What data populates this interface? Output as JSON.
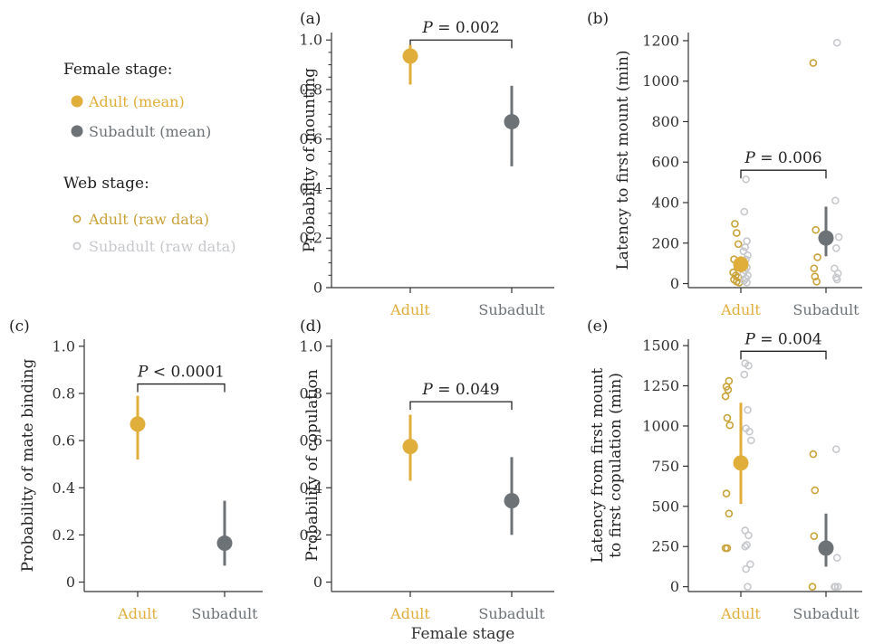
{
  "legend": {
    "female_title": "Female stage:",
    "female_items": [
      {
        "label": "Adult (mean)",
        "color": "#e0ae3b",
        "marker": "filled-circle"
      },
      {
        "label": "Subadult (mean)",
        "color": "#6c7276",
        "marker": "filled-circle"
      }
    ],
    "web_title": "Web stage:",
    "web_items": [
      {
        "label": "Adult (raw data)",
        "color": "#c9a23a",
        "marker": "open-circle"
      },
      {
        "label": "Subadult (raw data)",
        "color": "#c6c8cc",
        "marker": "open-circle"
      }
    ]
  },
  "shared_xlabel": "Female stage",
  "colors": {
    "adult": "#e0ae3b",
    "subadult": "#6c7276",
    "raw_adult": "#c9a23a",
    "raw_subadult": "#c6c8cc",
    "axis": "#333333"
  },
  "chart_data": [
    {
      "id": "a",
      "panel_label": "(a)",
      "type": "scatter",
      "categories": [
        "Adult",
        "Subadult"
      ],
      "ylabel": "Probability of mounting",
      "ylim": [
        0,
        1.03
      ],
      "yticks": [
        0,
        0.2,
        0.4,
        0.6,
        0.8,
        1.0
      ],
      "ytick_labels": [
        "0",
        "0.2",
        "0.4",
        "0.6",
        "0.8",
        "1.0"
      ],
      "minor_ticks": true,
      "means": [
        {
          "value": 0.935,
          "low": 0.82,
          "high": 0.98
        },
        {
          "value": 0.67,
          "low": 0.49,
          "high": 0.815
        }
      ],
      "bracket_text": "P = 0.002",
      "bracket_y": 1.0
    },
    {
      "id": "b",
      "panel_label": "(b)",
      "type": "scatter",
      "categories": [
        "Adult",
        "Subadult"
      ],
      "ylabel": "Latency to first mount (min)",
      "ylim": [
        -20,
        1240
      ],
      "yticks": [
        0,
        200,
        400,
        600,
        800,
        1000,
        1200
      ],
      "ytick_labels": [
        "0",
        "200",
        "400",
        "600",
        "800",
        "1000",
        "1200"
      ],
      "minor_ticks": false,
      "means": [
        {
          "value": 95,
          "low": 55,
          "high": 135
        },
        {
          "value": 225,
          "low": 135,
          "high": 380
        }
      ],
      "raw": {
        "adult_web": [
          [
            -0.07,
            295
          ],
          [
            -0.05,
            250
          ],
          [
            -0.03,
            195
          ],
          [
            -0.08,
            120
          ],
          [
            -0.02,
            110
          ],
          [
            -0.04,
            80
          ],
          [
            -0.09,
            55
          ],
          [
            -0.06,
            40
          ],
          [
            -0.03,
            30
          ],
          [
            -0.08,
            20
          ],
          [
            -0.05,
            10
          ],
          [
            -0.02,
            5
          ],
          [
            -0.15,
            1090
          ],
          [
            -0.12,
            265
          ],
          [
            -0.1,
            130
          ],
          [
            -0.14,
            75
          ],
          [
            -0.13,
            35
          ],
          [
            -0.11,
            10
          ]
        ],
        "subadult_web": [
          [
            0.06,
            515
          ],
          [
            0.04,
            355
          ],
          [
            0.07,
            210
          ],
          [
            0.05,
            180
          ],
          [
            0.03,
            160
          ],
          [
            0.08,
            140
          ],
          [
            0.06,
            120
          ],
          [
            0.04,
            100
          ],
          [
            0.07,
            80
          ],
          [
            0.05,
            65
          ],
          [
            0.03,
            50
          ],
          [
            0.08,
            40
          ],
          [
            0.06,
            25
          ],
          [
            0.04,
            15
          ],
          [
            0.07,
            5
          ],
          [
            0.13,
            1190
          ],
          [
            0.11,
            410
          ],
          [
            0.15,
            230
          ],
          [
            0.12,
            175
          ],
          [
            0.1,
            75
          ],
          [
            0.14,
            50
          ],
          [
            0.12,
            30
          ],
          [
            0.13,
            20
          ]
        ]
      },
      "bracket_text": "P = 0.006",
      "bracket_y": 560
    },
    {
      "id": "c",
      "panel_label": "(c)",
      "type": "scatter",
      "categories": [
        "Adult",
        "Subadult"
      ],
      "ylabel": "Probability of mate binding",
      "ylim": [
        -0.04,
        1.03
      ],
      "yticks": [
        0,
        0.2,
        0.4,
        0.6,
        0.8,
        1.0
      ],
      "ytick_labels": [
        "0",
        "0.2",
        "0.4",
        "0.6",
        "0.8",
        "1.0"
      ],
      "minor_ticks": false,
      "means": [
        {
          "value": 0.67,
          "low": 0.52,
          "high": 0.79
        },
        {
          "value": 0.165,
          "low": 0.07,
          "high": 0.345
        }
      ],
      "bracket_text": "P < 0.0001",
      "bracket_y": 0.84
    },
    {
      "id": "d",
      "panel_label": "(d)",
      "type": "scatter",
      "categories": [
        "Adult",
        "Subadult"
      ],
      "ylabel": "Probability of copulation",
      "ylim": [
        -0.04,
        1.03
      ],
      "yticks": [
        0,
        0.2,
        0.4,
        0.6,
        0.8,
        1.0
      ],
      "ytick_labels": [
        "0",
        "0.2",
        "0.4",
        "0.6",
        "0.8",
        "1.0"
      ],
      "minor_ticks": false,
      "means": [
        {
          "value": 0.575,
          "low": 0.43,
          "high": 0.71
        },
        {
          "value": 0.345,
          "low": 0.2,
          "high": 0.53
        }
      ],
      "bracket_text": "P = 0.049",
      "bracket_y": 0.765
    },
    {
      "id": "e",
      "panel_label": "(e)",
      "type": "scatter",
      "categories": [
        "Adult",
        "Subadult"
      ],
      "ylabel_lines": [
        "Latency from first mount",
        "to first copulation (min)"
      ],
      "ylim": [
        -30,
        1540
      ],
      "yticks": [
        0,
        250,
        500,
        750,
        1000,
        1250,
        1500
      ],
      "ytick_labels": [
        "0",
        "250",
        "500",
        "750",
        "1000",
        "1250",
        "1500"
      ],
      "minor_ticks": false,
      "means": [
        {
          "value": 770,
          "low": 515,
          "high": 1145
        },
        {
          "value": 240,
          "low": 125,
          "high": 455
        }
      ],
      "raw": {
        "adult_web": [
          [
            -0.14,
            1280
          ],
          [
            -0.17,
            1245
          ],
          [
            -0.15,
            1225
          ],
          [
            -0.18,
            1185
          ],
          [
            -0.16,
            1050
          ],
          [
            -0.13,
            1005
          ],
          [
            -0.17,
            580
          ],
          [
            -0.14,
            455
          ],
          [
            -0.18,
            240
          ],
          [
            -0.16,
            240
          ],
          [
            -0.15,
            825
          ],
          [
            -0.13,
            600
          ],
          [
            -0.14,
            315
          ],
          [
            -0.16,
            0
          ]
        ],
        "subadult_web": [
          [
            0.05,
            1390
          ],
          [
            0.09,
            1375
          ],
          [
            0.04,
            1320
          ],
          [
            0.08,
            1100
          ],
          [
            0.06,
            985
          ],
          [
            0.1,
            965
          ],
          [
            0.12,
            910
          ],
          [
            0.05,
            350
          ],
          [
            0.09,
            320
          ],
          [
            0.07,
            260
          ],
          [
            0.05,
            250
          ],
          [
            0.11,
            140
          ],
          [
            0.06,
            110
          ],
          [
            0.08,
            0
          ],
          [
            0.12,
            855
          ],
          [
            0.13,
            180
          ],
          [
            0.1,
            0
          ],
          [
            0.14,
            0
          ],
          [
            0.11,
            0
          ]
        ]
      },
      "bracket_text": "P = 0.004",
      "bracket_y": 1465
    }
  ]
}
